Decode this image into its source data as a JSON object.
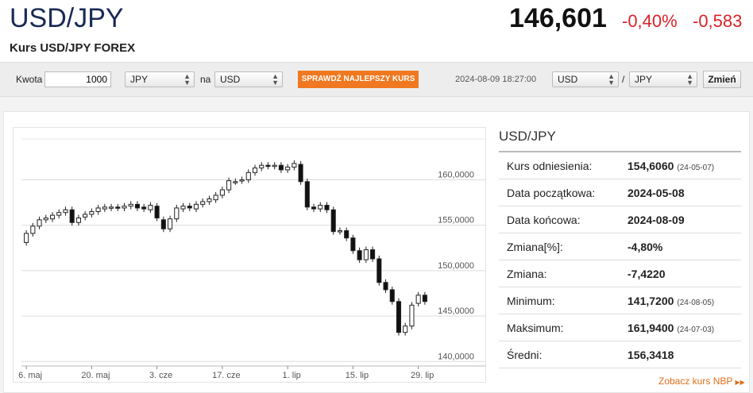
{
  "header": {
    "title": "USD/JPY",
    "subtitle": "Kurs USD/JPY FOREX",
    "price": "146,601",
    "change_pct": "-0,40%",
    "change_abs": "-0,583"
  },
  "toolbar": {
    "amount_label": "Kwota",
    "amount_value": "1000",
    "from_currency": "JPY",
    "to_label": "na",
    "to_currency": "USD",
    "best_rate_button": "SPRAWDŹ NAJLEPSZY KURS",
    "timestamp": "2024-08-09 18:27:00",
    "pair_base": "USD",
    "pair_sep": "/",
    "pair_quote": "JPY",
    "change_button": "Zmień"
  },
  "info": {
    "title": "USD/JPY",
    "rows": [
      {
        "label": "Kurs odniesienia:",
        "value": "154,6060",
        "note": "(24-05-07)"
      },
      {
        "label": "Data początkowa:",
        "value": "2024-05-08",
        "note": ""
      },
      {
        "label": "Data końcowa:",
        "value": "2024-08-09",
        "note": ""
      },
      {
        "label": "Zmiana[%]:",
        "value": "-4,80%",
        "note": ""
      },
      {
        "label": "Zmiana:",
        "value": "-7,4220",
        "note": ""
      },
      {
        "label": "Minimum:",
        "value": "141,7200",
        "note": "(24-08-05)"
      },
      {
        "label": "Maksimum:",
        "value": "161,9400",
        "note": "(24-07-03)"
      },
      {
        "label": "Średni:",
        "value": "156,3418",
        "note": ""
      }
    ],
    "nbp_link": "Zobacz kurs NBP"
  },
  "colors": {
    "up": "#ffffff",
    "down": "#111111",
    "accent": "#f07820",
    "negative": "#d8232a"
  },
  "chart_data": {
    "type": "candlestick",
    "y_ticks": [
      "160,0000",
      "155,0000",
      "150,0000",
      "145,0000",
      "140,0000"
    ],
    "y_tick_values": [
      160,
      155,
      150,
      145,
      140
    ],
    "x_ticks": [
      "6. maj",
      "20. maj",
      "3. cze",
      "17. cze",
      "1. lip",
      "15. lip",
      "29. lip"
    ],
    "x_tick_index": [
      0,
      10,
      20,
      30,
      40,
      50,
      60
    ],
    "ylim": [
      139.5,
      164.5
    ],
    "grid": true,
    "candles": [
      [
        153.1,
        154.1
      ],
      [
        154.1,
        154.9
      ],
      [
        154.9,
        155.6
      ],
      [
        155.6,
        155.8
      ],
      [
        155.7,
        156.1
      ],
      [
        156.1,
        156.4
      ],
      [
        156.4,
        156.7
      ],
      [
        156.7,
        155.3
      ],
      [
        155.3,
        155.8
      ],
      [
        155.9,
        156.2
      ],
      [
        156.2,
        156.5
      ],
      [
        156.5,
        156.9
      ],
      [
        156.8,
        157.0
      ],
      [
        156.9,
        157.0
      ],
      [
        157.0,
        156.9
      ],
      [
        156.9,
        157.1
      ],
      [
        157.1,
        157.3
      ],
      [
        157.3,
        156.9
      ],
      [
        157.0,
        156.8
      ],
      [
        156.7,
        157.2
      ],
      [
        157.1,
        155.8
      ],
      [
        155.6,
        154.6
      ],
      [
        154.6,
        155.7
      ],
      [
        155.7,
        156.9
      ],
      [
        156.8,
        157.1
      ],
      [
        157.1,
        156.9
      ],
      [
        156.8,
        157.3
      ],
      [
        157.3,
        157.6
      ],
      [
        157.6,
        157.9
      ],
      [
        157.8,
        158.3
      ],
      [
        158.3,
        158.9
      ],
      [
        158.9,
        159.9
      ],
      [
        159.8,
        159.8
      ],
      [
        159.9,
        160.0
      ],
      [
        160.0,
        160.8
      ],
      [
        160.8,
        161.3
      ],
      [
        161.3,
        161.6
      ],
      [
        161.6,
        161.5
      ],
      [
        161.5,
        161.6
      ],
      [
        161.6,
        161.1
      ],
      [
        161.1,
        161.4
      ],
      [
        161.4,
        161.8
      ],
      [
        161.7,
        159.8
      ],
      [
        159.8,
        157.0
      ],
      [
        157.0,
        156.8
      ],
      [
        156.8,
        157.2
      ],
      [
        157.2,
        156.7
      ],
      [
        156.7,
        154.3
      ],
      [
        154.3,
        154.4
      ],
      [
        154.4,
        153.6
      ],
      [
        153.6,
        152.2
      ],
      [
        152.2,
        151.2
      ],
      [
        151.2,
        152.3
      ],
      [
        152.3,
        151.3
      ],
      [
        151.3,
        148.7
      ],
      [
        148.7,
        147.9
      ],
      [
        147.9,
        146.6
      ],
      [
        146.6,
        143.2
      ],
      [
        143.2,
        143.9
      ],
      [
        143.9,
        146.2
      ],
      [
        146.4,
        147.3
      ],
      [
        147.3,
        146.6
      ]
    ]
  }
}
